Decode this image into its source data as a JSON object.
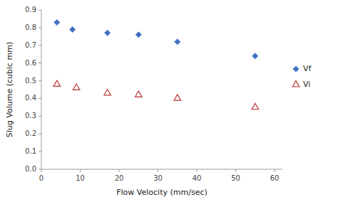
{
  "chart_data": {
    "type": "scatter",
    "xlabel": "Flow Velocity (mm/sec)",
    "ylabel": "Slug Volume (cubic mm)",
    "series": [
      {
        "name": "Vf",
        "color": "#4472C4",
        "marker": "diamond",
        "x": [
          4,
          8,
          17,
          25,
          35,
          55
        ],
        "values": [
          0.83,
          0.79,
          0.77,
          0.76,
          0.72,
          0.64
        ]
      },
      {
        "name": "Vi",
        "color": "#C0504D",
        "marker": "triangle-open",
        "x": [
          4,
          9,
          17,
          25,
          35,
          55
        ],
        "values": [
          0.48,
          0.46,
          0.43,
          0.42,
          0.4,
          0.35
        ]
      }
    ],
    "xlim": [
      0,
      62
    ],
    "ylim": [
      0,
      0.9
    ],
    "xticks": [
      0,
      10,
      20,
      30,
      40,
      50,
      60
    ],
    "yticks": [
      {
        "value": 0,
        "label": "0.0"
      },
      0.1,
      0.2,
      0.3,
      0.4,
      0.5,
      0.6,
      0.7,
      0.8,
      0.9
    ],
    "legend": "right"
  }
}
